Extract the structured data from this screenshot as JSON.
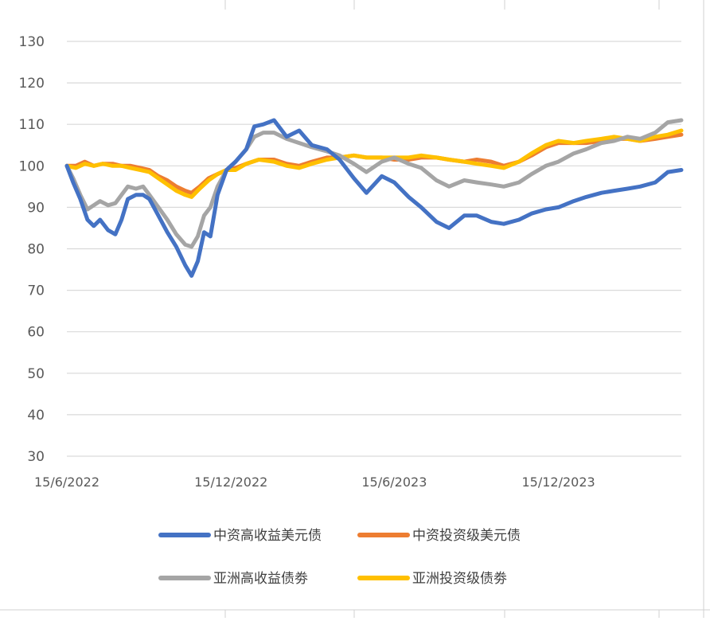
{
  "chart_data": {
    "type": "line",
    "title": "",
    "xlabel": "",
    "ylabel": "",
    "ylim": [
      30,
      130
    ],
    "yticks": [
      130,
      120,
      110,
      100,
      90,
      80,
      70,
      60,
      50,
      40,
      30
    ],
    "xlim": [
      "2022-06-15",
      "2024-04-30"
    ],
    "xticks": [
      {
        "date": "2022-06-15",
        "label": "15/6/2022"
      },
      {
        "date": "2022-12-15",
        "label": "15/12/2022"
      },
      {
        "date": "2023-06-15",
        "label": "15/6/2023"
      },
      {
        "date": "2023-12-15",
        "label": "15/12/2023"
      }
    ],
    "grid": true,
    "legend_position": "bottom",
    "series": [
      {
        "name": "中资投资级美元债",
        "color": "#ED7D31",
        "points": [
          [
            "2022-06-15",
            100
          ],
          [
            "2022-06-25",
            100
          ],
          [
            "2022-07-05",
            101
          ],
          [
            "2022-07-15",
            100
          ],
          [
            "2022-07-25",
            100.5
          ],
          [
            "2022-08-05",
            100.5
          ],
          [
            "2022-08-15",
            100
          ],
          [
            "2022-08-25",
            100
          ],
          [
            "2022-09-05",
            99.5
          ],
          [
            "2022-09-15",
            99
          ],
          [
            "2022-09-25",
            97.5
          ],
          [
            "2022-10-05",
            96.5
          ],
          [
            "2022-10-15",
            95
          ],
          [
            "2022-10-25",
            94
          ],
          [
            "2022-11-01",
            93.5
          ],
          [
            "2022-11-10",
            95
          ],
          [
            "2022-11-20",
            97
          ],
          [
            "2022-11-30",
            98
          ],
          [
            "2022-12-10",
            99
          ],
          [
            "2022-12-20",
            99.5
          ],
          [
            "2023-01-01",
            100.5
          ],
          [
            "2023-01-15",
            101.5
          ],
          [
            "2023-02-01",
            101.5
          ],
          [
            "2023-02-15",
            100.5
          ],
          [
            "2023-03-01",
            100
          ],
          [
            "2023-03-15",
            101
          ],
          [
            "2023-04-01",
            102
          ],
          [
            "2023-04-15",
            102
          ],
          [
            "2023-05-01",
            102.5
          ],
          [
            "2023-05-15",
            102
          ],
          [
            "2023-06-01",
            102
          ],
          [
            "2023-06-15",
            101.5
          ],
          [
            "2023-07-01",
            101.5
          ],
          [
            "2023-07-15",
            102
          ],
          [
            "2023-08-01",
            102
          ],
          [
            "2023-08-15",
            101.5
          ],
          [
            "2023-09-01",
            101
          ],
          [
            "2023-09-15",
            101.5
          ],
          [
            "2023-10-01",
            101
          ],
          [
            "2023-10-15",
            100
          ],
          [
            "2023-11-01",
            101
          ],
          [
            "2023-11-15",
            102.5
          ],
          [
            "2023-12-01",
            104.5
          ],
          [
            "2023-12-15",
            105.5
          ],
          [
            "2024-01-01",
            105.5
          ],
          [
            "2024-01-15",
            105.5
          ],
          [
            "2024-02-01",
            106
          ],
          [
            "2024-02-15",
            106.5
          ],
          [
            "2024-03-01",
            106.5
          ],
          [
            "2024-03-15",
            106
          ],
          [
            "2024-04-01",
            106.5
          ],
          [
            "2024-04-15",
            107
          ],
          [
            "2024-04-30",
            107.5
          ]
        ]
      },
      {
        "name": "亚洲投资级债劵",
        "color": "#FFC000",
        "points": [
          [
            "2022-06-15",
            100
          ],
          [
            "2022-06-25",
            99.5
          ],
          [
            "2022-07-05",
            100.5
          ],
          [
            "2022-07-15",
            100
          ],
          [
            "2022-07-25",
            100.5
          ],
          [
            "2022-08-05",
            100
          ],
          [
            "2022-08-15",
            100
          ],
          [
            "2022-08-25",
            99.5
          ],
          [
            "2022-09-05",
            99
          ],
          [
            "2022-09-15",
            98.5
          ],
          [
            "2022-09-25",
            97
          ],
          [
            "2022-10-05",
            95.5
          ],
          [
            "2022-10-15",
            94
          ],
          [
            "2022-10-25",
            93
          ],
          [
            "2022-11-01",
            92.5
          ],
          [
            "2022-11-10",
            94.5
          ],
          [
            "2022-11-20",
            96.5
          ],
          [
            "2022-11-30",
            98
          ],
          [
            "2022-12-10",
            99
          ],
          [
            "2022-12-20",
            99
          ],
          [
            "2023-01-01",
            100.5
          ],
          [
            "2023-01-15",
            101.5
          ],
          [
            "2023-02-01",
            101
          ],
          [
            "2023-02-15",
            100
          ],
          [
            "2023-03-01",
            99.5
          ],
          [
            "2023-03-15",
            100.5
          ],
          [
            "2023-04-01",
            101.5
          ],
          [
            "2023-04-15",
            102
          ],
          [
            "2023-05-01",
            102.5
          ],
          [
            "2023-05-15",
            102
          ],
          [
            "2023-06-01",
            102
          ],
          [
            "2023-06-15",
            102
          ],
          [
            "2023-07-01",
            102
          ],
          [
            "2023-07-15",
            102.5
          ],
          [
            "2023-08-01",
            102
          ],
          [
            "2023-08-15",
            101.5
          ],
          [
            "2023-09-01",
            101
          ],
          [
            "2023-09-15",
            100.5
          ],
          [
            "2023-10-01",
            100
          ],
          [
            "2023-10-15",
            99.5
          ],
          [
            "2023-11-01",
            101
          ],
          [
            "2023-11-15",
            103
          ],
          [
            "2023-12-01",
            105
          ],
          [
            "2023-12-15",
            106
          ],
          [
            "2024-01-01",
            105.5
          ],
          [
            "2024-01-15",
            106
          ],
          [
            "2024-02-01",
            106.5
          ],
          [
            "2024-02-15",
            107
          ],
          [
            "2024-03-01",
            106.5
          ],
          [
            "2024-03-15",
            106
          ],
          [
            "2024-04-01",
            107
          ],
          [
            "2024-04-15",
            107.5
          ],
          [
            "2024-04-30",
            108.5
          ]
        ]
      },
      {
        "name": "亚洲高收益债劵",
        "color": "#A5A5A5",
        "points": [
          [
            "2022-06-15",
            100
          ],
          [
            "2022-06-22",
            97
          ],
          [
            "2022-06-30",
            93
          ],
          [
            "2022-07-08",
            89.5
          ],
          [
            "2022-07-15",
            90.5
          ],
          [
            "2022-07-22",
            91.5
          ],
          [
            "2022-07-31",
            90.5
          ],
          [
            "2022-08-08",
            91
          ],
          [
            "2022-08-15",
            93
          ],
          [
            "2022-08-22",
            95
          ],
          [
            "2022-08-31",
            94.5
          ],
          [
            "2022-09-08",
            95
          ],
          [
            "2022-09-15",
            93
          ],
          [
            "2022-09-25",
            90
          ],
          [
            "2022-10-05",
            87
          ],
          [
            "2022-10-15",
            83.5
          ],
          [
            "2022-10-25",
            81
          ],
          [
            "2022-11-01",
            80.5
          ],
          [
            "2022-11-08",
            83
          ],
          [
            "2022-11-15",
            88
          ],
          [
            "2022-11-22",
            90
          ],
          [
            "2022-11-30",
            95
          ],
          [
            "2022-12-10",
            99
          ],
          [
            "2022-12-20",
            101
          ],
          [
            "2023-01-01",
            104
          ],
          [
            "2023-01-10",
            107
          ],
          [
            "2023-01-20",
            108
          ],
          [
            "2023-02-01",
            108
          ],
          [
            "2023-02-15",
            106.5
          ],
          [
            "2023-03-01",
            105.5
          ],
          [
            "2023-03-15",
            104.5
          ],
          [
            "2023-04-01",
            103.5
          ],
          [
            "2023-04-15",
            102.5
          ],
          [
            "2023-05-01",
            100.5
          ],
          [
            "2023-05-15",
            98.5
          ],
          [
            "2023-06-01",
            101
          ],
          [
            "2023-06-15",
            102
          ],
          [
            "2023-07-01",
            100.5
          ],
          [
            "2023-07-15",
            99.5
          ],
          [
            "2023-08-01",
            96.5
          ],
          [
            "2023-08-15",
            95
          ],
          [
            "2023-09-01",
            96.5
          ],
          [
            "2023-09-15",
            96
          ],
          [
            "2023-10-01",
            95.5
          ],
          [
            "2023-10-15",
            95
          ],
          [
            "2023-11-01",
            96
          ],
          [
            "2023-11-15",
            98
          ],
          [
            "2023-12-01",
            100
          ],
          [
            "2023-12-15",
            101
          ],
          [
            "2024-01-01",
            103
          ],
          [
            "2024-01-15",
            104
          ],
          [
            "2024-02-01",
            105.5
          ],
          [
            "2024-02-15",
            106
          ],
          [
            "2024-03-01",
            107
          ],
          [
            "2024-03-15",
            106.5
          ],
          [
            "2024-04-01",
            108
          ],
          [
            "2024-04-15",
            110.5
          ],
          [
            "2024-04-30",
            111
          ]
        ]
      },
      {
        "name": "中资高收益美元债",
        "color": "#4472C4",
        "points": [
          [
            "2022-06-15",
            100
          ],
          [
            "2022-06-22",
            96
          ],
          [
            "2022-06-30",
            92
          ],
          [
            "2022-07-08",
            87
          ],
          [
            "2022-07-15",
            85.5
          ],
          [
            "2022-07-22",
            87
          ],
          [
            "2022-07-31",
            84.5
          ],
          [
            "2022-08-08",
            83.5
          ],
          [
            "2022-08-15",
            87
          ],
          [
            "2022-08-22",
            92
          ],
          [
            "2022-08-31",
            93
          ],
          [
            "2022-09-08",
            93
          ],
          [
            "2022-09-15",
            92
          ],
          [
            "2022-09-25",
            88
          ],
          [
            "2022-10-05",
            84
          ],
          [
            "2022-10-15",
            80.5
          ],
          [
            "2022-10-25",
            76
          ],
          [
            "2022-11-01",
            73.5
          ],
          [
            "2022-11-08",
            77
          ],
          [
            "2022-11-15",
            84
          ],
          [
            "2022-11-22",
            83
          ],
          [
            "2022-11-30",
            93
          ],
          [
            "2022-12-10",
            99
          ],
          [
            "2022-12-20",
            101
          ],
          [
            "2023-01-01",
            104
          ],
          [
            "2023-01-10",
            109.5
          ],
          [
            "2023-01-20",
            110
          ],
          [
            "2023-02-01",
            111
          ],
          [
            "2023-02-15",
            107
          ],
          [
            "2023-03-01",
            108.5
          ],
          [
            "2023-03-15",
            105
          ],
          [
            "2023-04-01",
            104
          ],
          [
            "2023-04-15",
            101.5
          ],
          [
            "2023-05-01",
            97
          ],
          [
            "2023-05-15",
            93.5
          ],
          [
            "2023-06-01",
            97.5
          ],
          [
            "2023-06-15",
            96
          ],
          [
            "2023-07-01",
            92.5
          ],
          [
            "2023-07-15",
            90
          ],
          [
            "2023-08-01",
            86.5
          ],
          [
            "2023-08-15",
            85
          ],
          [
            "2023-09-01",
            88
          ],
          [
            "2023-09-15",
            88
          ],
          [
            "2023-10-01",
            86.5
          ],
          [
            "2023-10-15",
            86
          ],
          [
            "2023-11-01",
            87
          ],
          [
            "2023-11-15",
            88.5
          ],
          [
            "2023-12-01",
            89.5
          ],
          [
            "2023-12-15",
            90
          ],
          [
            "2024-01-01",
            91.5
          ],
          [
            "2024-01-15",
            92.5
          ],
          [
            "2024-02-01",
            93.5
          ],
          [
            "2024-02-15",
            94
          ],
          [
            "2024-03-01",
            94.5
          ],
          [
            "2024-03-15",
            95
          ],
          [
            "2024-04-01",
            96
          ],
          [
            "2024-04-15",
            98.5
          ],
          [
            "2024-04-30",
            99
          ]
        ]
      }
    ],
    "legend": [
      {
        "name": "中资高收益美元债",
        "color": "#4472C4"
      },
      {
        "name": "中资投资级美元债",
        "color": "#ED7D31"
      },
      {
        "name": "亚洲高收益债劵",
        "color": "#A5A5A5"
      },
      {
        "name": "亚洲投资级债劵",
        "color": "#FFC000"
      }
    ]
  }
}
